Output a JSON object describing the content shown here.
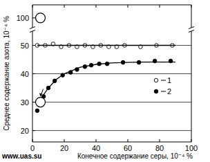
{
  "chart_data": [
    {
      "type": "scatter",
      "xlim": [
        0,
        100
      ],
      "xticks": [
        0,
        20,
        40,
        60,
        80,
        100
      ],
      "ylim": [
        97,
        104
      ],
      "yticks": [
        100
      ],
      "tick_labels": "y",
      "series": [
        {
          "marker": "big_open_circle",
          "color": "#000000",
          "x": [
            5
          ],
          "values": [
            100
          ]
        }
      ]
    },
    {
      "type": "scatter",
      "x_label": "Конечное содержание серы, 10⁻⁴ %",
      "y_label": "Среднее содержание азота, 10⁻⁴ %",
      "watermark": "www.uas.su",
      "xlim": [
        0,
        100
      ],
      "xticks": [
        0,
        20,
        40,
        60,
        80,
        100
      ],
      "ylim": [
        16,
        55
      ],
      "yticks": [
        20,
        30,
        40,
        50
      ],
      "grid": "y",
      "legend": "right",
      "series": [
        {
          "name": "1",
          "marker": "open_circle",
          "color": "#000000",
          "x": [
            3,
            8,
            13,
            18,
            23,
            28,
            33,
            38,
            43,
            48,
            53,
            58,
            68,
            78,
            88
          ],
          "values": [
            50,
            50,
            50.5,
            49.5,
            50,
            49.5,
            50,
            49.5,
            50,
            49.5,
            49.5,
            50,
            49.5,
            50,
            50
          ]
        },
        {
          "name": "2",
          "marker": "filled_circle",
          "color": "#000000",
          "x": [
            3,
            7,
            10,
            14,
            19,
            24,
            28,
            33,
            37,
            42,
            47,
            57,
            67,
            77,
            87
          ],
          "values": [
            27,
            32,
            35,
            37.5,
            39.5,
            40.5,
            41.5,
            42.5,
            43,
            43.5,
            43.5,
            44,
            44,
            44.5,
            44.5
          ]
        },
        {
          "type": "line",
          "line_style": "solid",
          "color": "#000000",
          "x": [
            3,
            90
          ],
          "values": [
            50,
            50
          ]
        },
        {
          "type": "line",
          "line_style": "solid",
          "color": "#000000",
          "x": [
            5,
            10,
            15,
            20,
            30,
            40,
            50,
            60,
            70,
            80,
            90
          ],
          "values": [
            31,
            35,
            38,
            40,
            42.3,
            43.3,
            43.8,
            44,
            44.1,
            44.1,
            44.1
          ]
        },
        {
          "marker": "big_open_circle_arrow",
          "color": "#000000",
          "x": [
            5
          ],
          "values": [
            30
          ]
        }
      ]
    }
  ]
}
